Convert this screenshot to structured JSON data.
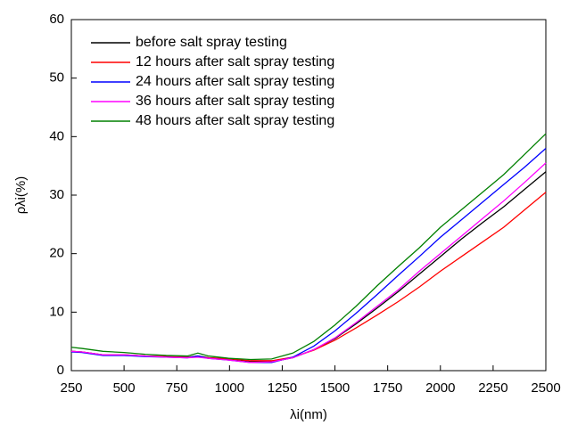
{
  "chart_data": {
    "type": "line",
    "x_label": "λi(nm)",
    "y_label": "ρλi(%)",
    "x": [
      250,
      300,
      400,
      500,
      600,
      700,
      800,
      850,
      900,
      1000,
      1100,
      1200,
      1300,
      1400,
      1500,
      1600,
      1700,
      1800,
      1900,
      2000,
      2100,
      2200,
      2300,
      2400,
      2500
    ],
    "series": [
      {
        "name": "before salt spray testing",
        "color": "#000000",
        "values": [
          3.3,
          3.2,
          2.7,
          2.7,
          2.5,
          2.4,
          2.3,
          2.5,
          2.2,
          2.0,
          1.6,
          1.5,
          2.2,
          3.6,
          5.5,
          8.0,
          10.7,
          13.5,
          16.5,
          19.5,
          22.5,
          25.3,
          28.0,
          31.0,
          34.0
        ]
      },
      {
        "name": "12 hours after salt spray testing",
        "color": "#ff0000",
        "values": [
          3.3,
          3.2,
          2.7,
          2.7,
          2.5,
          2.4,
          2.3,
          2.4,
          2.2,
          2.0,
          1.7,
          1.7,
          2.3,
          3.5,
          5.2,
          7.3,
          9.5,
          11.8,
          14.3,
          17.0,
          19.5,
          22.0,
          24.5,
          27.5,
          30.5
        ]
      },
      {
        "name": "24 hours after salt spray testing",
        "color": "#0000ff",
        "values": [
          3.2,
          3.1,
          2.6,
          2.6,
          2.4,
          2.3,
          2.2,
          2.5,
          2.1,
          1.8,
          1.4,
          1.4,
          2.3,
          4.2,
          6.8,
          9.8,
          13.0,
          16.3,
          19.5,
          22.8,
          25.8,
          28.8,
          31.8,
          34.8,
          38.0
        ]
      },
      {
        "name": "36 hours after salt spray testing",
        "color": "#ff00ff",
        "values": [
          3.3,
          3.2,
          2.7,
          2.7,
          2.5,
          2.3,
          2.2,
          2.3,
          2.1,
          1.8,
          1.4,
          1.5,
          2.2,
          3.6,
          5.6,
          8.2,
          11.0,
          13.8,
          17.0,
          20.0,
          23.0,
          26.0,
          29.0,
          32.2,
          35.5
        ]
      },
      {
        "name": "48 hours after salt spray testing",
        "color": "#008000",
        "values": [
          4.0,
          3.8,
          3.3,
          3.1,
          2.8,
          2.6,
          2.5,
          3.0,
          2.5,
          2.1,
          1.9,
          2.0,
          3.0,
          5.0,
          7.8,
          11.0,
          14.5,
          17.8,
          21.0,
          24.5,
          27.5,
          30.5,
          33.5,
          37.0,
          40.5
        ]
      }
    ],
    "xlim": [
      250,
      2500
    ],
    "xticks": [
      250,
      500,
      750,
      1000,
      1250,
      1500,
      1750,
      2000,
      2250,
      2500
    ],
    "ylim": [
      0,
      60
    ],
    "yticks": [
      0,
      10,
      20,
      30,
      40,
      50,
      60
    ],
    "legend": "upper left"
  }
}
